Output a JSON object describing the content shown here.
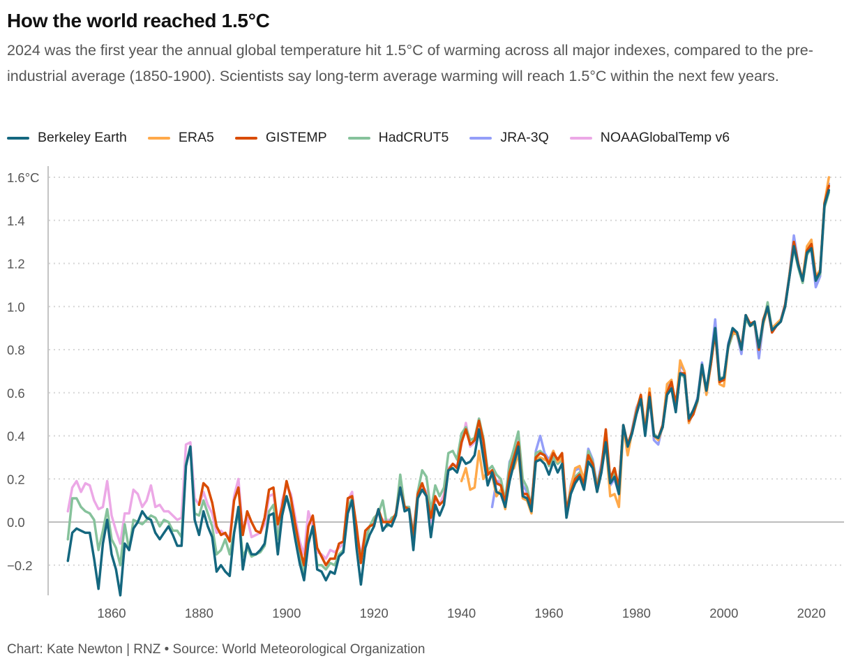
{
  "title": "How the world reached 1.5°C",
  "subtitle": "2024 was the first year the annual global temperature hit 1.5°C of warming across all major indexes, compared to the pre-industrial average (1850-1900). Scientists say long-term average warming will reach 1.5°C within the next few years.",
  "footer": "Chart: Kate Newton | RNZ • Source: World Meteorological Organization",
  "chart_data": {
    "type": "line",
    "title": "How the world reached 1.5°C",
    "xlabel": "",
    "ylabel": "",
    "xlim": [
      1850,
      2024
    ],
    "ylim": [
      -0.33,
      1.6
    ],
    "grid": "horizontal dotted",
    "legend": "top",
    "x_ticks": [
      "1860",
      "1880",
      "1900",
      "1920",
      "1940",
      "1960",
      "1980",
      "2000",
      "2020"
    ],
    "y_ticks": [
      "1.6°C",
      "1.4",
      "1.2",
      "1.0",
      "0.8",
      "0.6",
      "0.4",
      "0.2",
      "0.0",
      "−0.2"
    ],
    "series": [
      {
        "name": "NOAAGlobalTemp v6",
        "color": "#eca8e6",
        "start": 1850,
        "values": [
          0.05,
          0.16,
          0.19,
          0.14,
          0.18,
          0.17,
          0.1,
          0.06,
          0.07,
          0.19,
          0.03,
          -0.04,
          -0.1,
          0.04,
          0.04,
          0.15,
          0.13,
          0.07,
          0.1,
          0.17,
          0.07,
          0.08,
          0.05,
          0.05,
          0.03,
          0.01,
          0.02,
          0.36,
          0.37,
          0.11,
          0.08,
          0.14,
          0.08,
          0.04,
          -0.05,
          -0.04,
          -0.06,
          -0.07,
          0.12,
          0.2,
          -0.04,
          0.02,
          -0.07,
          -0.06,
          -0.05,
          -0.01,
          0.12,
          0.13,
          -0.03,
          0.1,
          0.17,
          0.13,
          0.02,
          -0.09,
          -0.15,
          0.05,
          -0.02,
          -0.14,
          -0.15,
          -0.17,
          -0.13,
          -0.14,
          -0.12,
          -0.1,
          0.1,
          0.14,
          -0.05,
          -0.15,
          -0.05,
          -0.02,
          0.0,
          0.04,
          0.01,
          0.01,
          0.01,
          0.03,
          0.17,
          0.07,
          0.07,
          -0.05,
          0.14,
          0.17,
          0.14,
          0.0,
          0.11,
          0.08,
          0.13,
          0.25,
          0.27,
          0.26,
          0.36,
          0.46,
          0.35,
          0.37,
          0.48,
          0.37,
          0.22,
          0.24,
          0.19,
          0.19,
          0.1,
          0.25,
          0.31,
          0.38,
          0.14,
          0.13,
          0.07,
          0.31,
          0.32,
          0.31,
          0.27,
          0.32,
          0.28,
          0.31,
          0.04,
          0.15,
          0.21,
          0.23,
          0.19,
          0.33,
          0.28,
          0.16,
          0.25,
          0.41,
          0.19,
          0.23,
          0.15,
          0.45,
          0.36,
          0.42,
          0.51,
          0.58,
          0.42,
          0.6,
          0.4,
          0.39,
          0.44,
          0.6,
          0.63,
          0.53,
          0.7,
          0.68,
          0.47,
          0.5,
          0.57,
          0.72,
          0.6,
          0.74,
          0.9,
          0.66,
          0.66,
          0.82,
          0.88,
          0.88,
          0.81,
          0.96,
          0.92,
          0.93,
          0.8,
          0.93,
          1.0,
          0.88,
          0.91,
          0.93,
          1.0,
          1.14,
          1.29,
          1.19,
          1.12,
          1.25,
          1.28,
          1.12,
          1.15,
          1.47,
          1.56
        ]
      },
      {
        "name": "JRA-3Q",
        "color": "#949ef8",
        "start": 1947,
        "values": [
          0.07,
          0.19,
          0.17,
          0.1,
          0.28,
          0.32,
          0.36,
          0.17,
          0.14,
          0.07,
          0.33,
          0.4,
          0.32,
          0.29,
          0.33,
          0.27,
          0.29,
          0.03,
          0.17,
          0.24,
          0.25,
          0.19,
          0.34,
          0.29,
          0.17,
          0.27,
          0.4,
          0.17,
          0.2,
          0.13,
          0.44,
          0.33,
          0.43,
          0.53,
          0.58,
          0.41,
          0.59,
          0.38,
          0.36,
          0.45,
          0.63,
          0.64,
          0.53,
          0.73,
          0.7,
          0.46,
          0.51,
          0.58,
          0.74,
          0.6,
          0.75,
          0.94,
          0.67,
          0.66,
          0.83,
          0.89,
          0.87,
          0.78,
          0.96,
          0.91,
          0.92,
          0.76,
          0.92,
          1.0,
          0.88,
          0.91,
          0.94,
          1.01,
          1.15,
          1.33,
          1.2,
          1.11,
          1.25,
          1.26,
          1.09,
          1.14,
          1.47,
          1.57
        ]
      },
      {
        "name": "HadCRUT5",
        "color": "#86c29b",
        "start": 1850,
        "values": [
          -0.08,
          0.11,
          0.11,
          0.07,
          0.05,
          0.04,
          0.01,
          -0.13,
          -0.04,
          0.06,
          -0.08,
          -0.12,
          -0.2,
          -0.01,
          -0.13,
          0.01,
          0.0,
          -0.01,
          0.01,
          0.03,
          0.02,
          -0.02,
          0.01,
          0.0,
          -0.04,
          -0.04,
          -0.07,
          0.27,
          0.35,
          0.04,
          0.03,
          0.1,
          0.04,
          -0.02,
          -0.15,
          -0.13,
          -0.08,
          -0.15,
          -0.05,
          0.05,
          -0.16,
          -0.12,
          -0.16,
          -0.15,
          -0.14,
          -0.11,
          0.05,
          0.08,
          -0.08,
          0.05,
          0.12,
          0.06,
          -0.05,
          -0.16,
          -0.24,
          -0.09,
          -0.03,
          -0.2,
          -0.2,
          -0.22,
          -0.19,
          -0.2,
          -0.15,
          -0.13,
          0.07,
          0.11,
          -0.08,
          -0.15,
          -0.09,
          -0.02,
          0.02,
          0.04,
          0.1,
          -0.02,
          0.02,
          0.03,
          0.22,
          0.07,
          0.07,
          -0.06,
          0.14,
          0.24,
          0.21,
          0.05,
          0.17,
          0.12,
          0.16,
          0.32,
          0.33,
          0.29,
          0.41,
          0.44,
          0.38,
          0.39,
          0.48,
          0.39,
          0.24,
          0.26,
          0.22,
          0.2,
          0.1,
          0.27,
          0.34,
          0.42,
          0.2,
          0.16,
          0.07,
          0.32,
          0.33,
          0.31,
          0.26,
          0.3,
          0.27,
          0.29,
          0.05,
          0.16,
          0.21,
          0.23,
          0.19,
          0.33,
          0.28,
          0.17,
          0.25,
          0.41,
          0.19,
          0.23,
          0.15,
          0.45,
          0.36,
          0.42,
          0.52,
          0.58,
          0.42,
          0.59,
          0.41,
          0.39,
          0.44,
          0.59,
          0.62,
          0.52,
          0.69,
          0.67,
          0.47,
          0.5,
          0.56,
          0.72,
          0.6,
          0.73,
          0.9,
          0.67,
          0.67,
          0.81,
          0.87,
          0.88,
          0.81,
          0.94,
          0.91,
          0.92,
          0.8,
          0.92,
          1.02,
          0.89,
          0.91,
          0.93,
          1.0,
          1.14,
          1.27,
          1.18,
          1.11,
          1.24,
          1.27,
          1.12,
          1.15,
          1.46,
          1.53
        ]
      },
      {
        "name": "ERA5",
        "color": "#ffa94a",
        "start": 1940,
        "values": [
          0.19,
          0.25,
          0.15,
          0.16,
          0.33,
          0.2,
          0.24,
          0.22,
          0.12,
          0.15,
          0.06,
          0.23,
          0.25,
          0.32,
          0.11,
          0.1,
          0.04,
          0.29,
          0.3,
          0.29,
          0.28,
          0.33,
          0.28,
          0.3,
          0.03,
          0.16,
          0.25,
          0.26,
          0.2,
          0.31,
          0.26,
          0.14,
          0.24,
          0.37,
          0.12,
          0.13,
          0.07,
          0.44,
          0.31,
          0.42,
          0.52,
          0.59,
          0.43,
          0.62,
          0.4,
          0.38,
          0.44,
          0.64,
          0.66,
          0.53,
          0.75,
          0.7,
          0.46,
          0.52,
          0.57,
          0.73,
          0.59,
          0.73,
          0.89,
          0.64,
          0.63,
          0.82,
          0.88,
          0.87,
          0.8,
          0.96,
          0.92,
          0.92,
          0.81,
          0.92,
          0.99,
          0.9,
          0.92,
          0.94,
          1.0,
          1.15,
          1.3,
          1.19,
          1.13,
          1.28,
          1.31,
          1.14,
          1.17,
          1.48,
          1.6
        ]
      },
      {
        "name": "GISTEMP",
        "color": "#d94c00",
        "start": 1880,
        "values": [
          0.08,
          0.18,
          0.16,
          0.09,
          -0.02,
          -0.06,
          -0.05,
          -0.09,
          0.1,
          0.16,
          -0.06,
          0.05,
          0.0,
          -0.04,
          -0.05,
          0.02,
          0.15,
          0.16,
          -0.01,
          0.07,
          0.19,
          0.11,
          -0.01,
          -0.12,
          -0.2,
          -0.02,
          0.03,
          -0.12,
          -0.16,
          -0.2,
          -0.17,
          -0.17,
          -0.1,
          -0.09,
          0.11,
          0.12,
          -0.02,
          -0.19,
          -0.04,
          -0.02,
          -0.01,
          0.06,
          0.0,
          0.0,
          0.0,
          0.04,
          0.16,
          0.07,
          0.06,
          -0.07,
          0.13,
          0.18,
          0.12,
          0.02,
          0.12,
          0.08,
          0.1,
          0.24,
          0.27,
          0.25,
          0.37,
          0.43,
          0.36,
          0.38,
          0.47,
          0.38,
          0.22,
          0.24,
          0.18,
          0.17,
          0.09,
          0.23,
          0.3,
          0.37,
          0.13,
          0.13,
          0.08,
          0.3,
          0.32,
          0.31,
          0.27,
          0.32,
          0.29,
          0.32,
          0.05,
          0.14,
          0.2,
          0.22,
          0.18,
          0.31,
          0.27,
          0.15,
          0.25,
          0.43,
          0.2,
          0.25,
          0.16,
          0.45,
          0.36,
          0.42,
          0.51,
          0.59,
          0.41,
          0.6,
          0.4,
          0.39,
          0.45,
          0.6,
          0.65,
          0.55,
          0.69,
          0.69,
          0.47,
          0.5,
          0.57,
          0.72,
          0.61,
          0.73,
          0.88,
          0.65,
          0.66,
          0.82,
          0.89,
          0.88,
          0.81,
          0.96,
          0.92,
          0.93,
          0.8,
          0.94,
          1.0,
          0.88,
          0.91,
          0.93,
          1.01,
          1.14,
          1.3,
          1.2,
          1.12,
          1.26,
          1.29,
          1.13,
          1.16,
          1.48,
          1.56
        ]
      },
      {
        "name": "Berkeley Earth",
        "color": "#14677f",
        "start": 1850,
        "values": [
          -0.18,
          -0.05,
          -0.03,
          -0.04,
          -0.05,
          -0.05,
          -0.17,
          -0.31,
          -0.1,
          0.01,
          -0.15,
          -0.22,
          -0.34,
          -0.1,
          -0.13,
          -0.03,
          0.0,
          0.05,
          0.02,
          0.01,
          -0.05,
          -0.08,
          -0.05,
          -0.02,
          -0.06,
          -0.11,
          -0.11,
          0.26,
          0.35,
          0.01,
          -0.06,
          0.05,
          -0.02,
          -0.07,
          -0.23,
          -0.2,
          -0.23,
          -0.25,
          -0.05,
          0.07,
          -0.22,
          -0.1,
          -0.15,
          -0.15,
          -0.13,
          -0.1,
          0.03,
          0.04,
          -0.15,
          0.03,
          0.12,
          0.04,
          -0.08,
          -0.19,
          -0.27,
          -0.1,
          -0.02,
          -0.22,
          -0.23,
          -0.27,
          -0.23,
          -0.24,
          -0.16,
          -0.14,
          0.04,
          0.1,
          -0.12,
          -0.29,
          -0.12,
          -0.06,
          -0.02,
          0.06,
          -0.04,
          -0.01,
          -0.02,
          0.03,
          0.16,
          0.05,
          0.06,
          -0.13,
          0.11,
          0.15,
          0.12,
          -0.07,
          0.08,
          0.03,
          0.08,
          0.24,
          0.25,
          0.23,
          0.3,
          0.27,
          0.28,
          0.31,
          0.43,
          0.3,
          0.17,
          0.23,
          0.14,
          0.13,
          0.07,
          0.19,
          0.27,
          0.35,
          0.12,
          0.11,
          0.05,
          0.28,
          0.29,
          0.27,
          0.22,
          0.28,
          0.23,
          0.27,
          0.02,
          0.13,
          0.18,
          0.21,
          0.15,
          0.28,
          0.25,
          0.14,
          0.23,
          0.37,
          0.18,
          0.21,
          0.13,
          0.45,
          0.35,
          0.41,
          0.5,
          0.57,
          0.4,
          0.58,
          0.4,
          0.39,
          0.44,
          0.59,
          0.62,
          0.51,
          0.69,
          0.68,
          0.48,
          0.52,
          0.57,
          0.73,
          0.61,
          0.75,
          0.9,
          0.66,
          0.67,
          0.82,
          0.9,
          0.88,
          0.8,
          0.96,
          0.91,
          0.93,
          0.81,
          0.93,
          1.0,
          0.89,
          0.91,
          0.93,
          1.0,
          1.14,
          1.28,
          1.19,
          1.12,
          1.25,
          1.27,
          1.12,
          1.16,
          1.47,
          1.54
        ]
      }
    ]
  },
  "legend": [
    {
      "name": "Berkeley Earth",
      "color": "#14677f"
    },
    {
      "name": "ERA5",
      "color": "#ffa94a"
    },
    {
      "name": "GISTEMP",
      "color": "#d94c00"
    },
    {
      "name": "HadCRUT5",
      "color": "#86c29b"
    },
    {
      "name": "JRA-3Q",
      "color": "#949ef8"
    },
    {
      "name": "NOAAGlobalTemp v6",
      "color": "#eca8e6"
    }
  ]
}
